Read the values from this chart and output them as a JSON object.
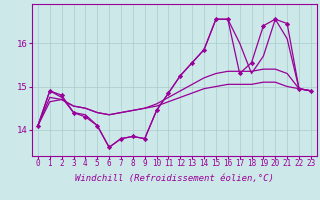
{
  "x": [
    0,
    1,
    2,
    3,
    4,
    5,
    6,
    7,
    8,
    9,
    10,
    11,
    12,
    13,
    14,
    15,
    16,
    17,
    18,
    19,
    20,
    21,
    22,
    23
  ],
  "series": [
    {
      "name": "spiky_with_markers",
      "y": [
        14.1,
        14.9,
        14.8,
        14.4,
        14.3,
        14.1,
        13.6,
        13.8,
        13.85,
        13.8,
        14.45,
        14.85,
        15.25,
        15.55,
        15.85,
        16.55,
        16.55,
        15.3,
        15.55,
        16.4,
        16.55,
        16.45,
        14.95,
        14.9
      ],
      "marker": "D"
    },
    {
      "name": "spiky_no_markers",
      "y": [
        14.1,
        14.9,
        14.75,
        14.4,
        14.35,
        14.1,
        13.6,
        13.8,
        13.85,
        13.8,
        14.45,
        14.85,
        15.25,
        15.55,
        15.85,
        16.55,
        16.55,
        16.0,
        15.3,
        15.7,
        16.55,
        16.1,
        14.95,
        14.9
      ],
      "marker": null
    },
    {
      "name": "medium_no_markers",
      "y": [
        14.1,
        14.75,
        14.7,
        14.55,
        14.5,
        14.4,
        14.35,
        14.4,
        14.45,
        14.5,
        14.6,
        14.75,
        14.9,
        15.05,
        15.2,
        15.3,
        15.35,
        15.35,
        15.35,
        15.4,
        15.4,
        15.3,
        14.95,
        14.9
      ],
      "marker": null
    },
    {
      "name": "flat_no_markers",
      "y": [
        14.1,
        14.65,
        14.7,
        14.55,
        14.5,
        14.4,
        14.35,
        14.4,
        14.45,
        14.5,
        14.55,
        14.65,
        14.75,
        14.85,
        14.95,
        15.0,
        15.05,
        15.05,
        15.05,
        15.1,
        15.1,
        15.0,
        14.95,
        14.9
      ],
      "marker": null
    }
  ],
  "line_color": "#990099",
  "bg_color": "#cce8e8",
  "grid_color": "#aacccc",
  "ylabel_ticks": [
    14,
    15,
    16
  ],
  "xlabel": "Windchill (Refroidissement éolien,°C)",
  "ylim": [
    13.4,
    16.9
  ],
  "xlim": [
    -0.5,
    23.5
  ],
  "axis_fontsize": 6.5,
  "tick_fontsize": 5.5,
  "linewidth": 0.9,
  "markersize": 2.2
}
